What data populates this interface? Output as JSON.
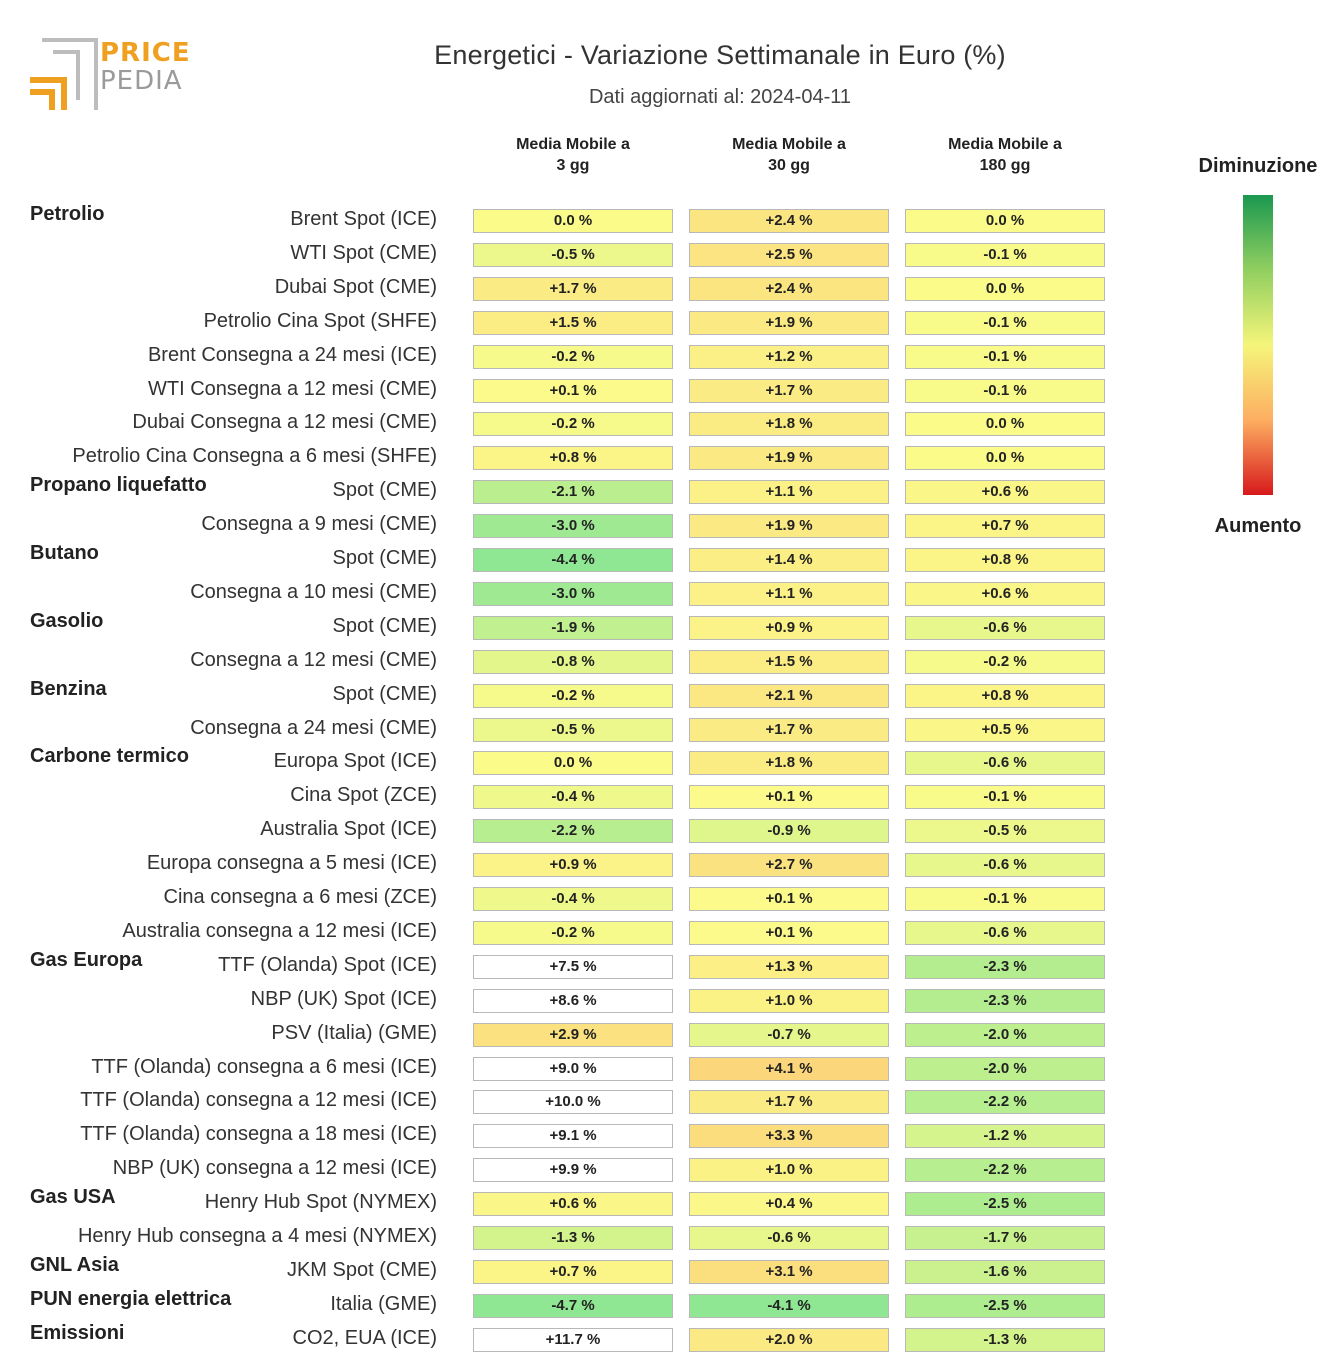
{
  "logo": {
    "line1": "PRICE",
    "line2": "PEDIA"
  },
  "title": "Energetici - Variazione Settimanale in Euro (%)",
  "subtitle": "Dati aggiornati al: 2024-04-11",
  "columns": [
    {
      "line1": "Media Mobile a",
      "line2": "3 gg"
    },
    {
      "line1": "Media Mobile a",
      "line2": "30 gg"
    },
    {
      "line1": "Media Mobile a",
      "line2": "180 gg"
    }
  ],
  "legend": {
    "top": "Diminuzione",
    "bottom": "Aumento"
  },
  "colors": {
    "green": "#1a9850",
    "light_green": "#91cf60",
    "yellow": "#f5f57a",
    "orange": "#fdae61",
    "red": "#d7191c"
  },
  "chart_data": {
    "type": "heatmap",
    "title": "Energetici - Variazione Settimanale in Euro (%)",
    "columns": [
      "Media Mobile a 3 gg",
      "Media Mobile a 30 gg",
      "Media Mobile a 180 gg"
    ],
    "value_format": "percent",
    "groups": [
      {
        "name": "Petrolio",
        "rows": [
          {
            "label": "Brent Spot (ICE)",
            "values": [
              "0.0 %",
              "+2.4 %",
              "0.0 %"
            ],
            "nums": [
              0.0,
              2.4,
              0.0
            ]
          },
          {
            "label": "WTI Spot (CME)",
            "values": [
              "-0.5 %",
              "+2.5 %",
              "-0.1 %"
            ],
            "nums": [
              -0.5,
              2.5,
              -0.1
            ]
          },
          {
            "label": "Dubai Spot (CME)",
            "values": [
              "+1.7 %",
              "+2.4 %",
              "0.0 %"
            ],
            "nums": [
              1.7,
              2.4,
              0.0
            ]
          },
          {
            "label": "Petrolio Cina Spot (SHFE)",
            "values": [
              "+1.5 %",
              "+1.9 %",
              "-0.1 %"
            ],
            "nums": [
              1.5,
              1.9,
              -0.1
            ]
          },
          {
            "label": "Brent Consegna a 24 mesi (ICE)",
            "values": [
              "-0.2 %",
              "+1.2 %",
              "-0.1 %"
            ],
            "nums": [
              -0.2,
              1.2,
              -0.1
            ]
          },
          {
            "label": "WTI Consegna a 12 mesi (CME)",
            "values": [
              "+0.1 %",
              "+1.7 %",
              "-0.1 %"
            ],
            "nums": [
              0.1,
              1.7,
              -0.1
            ]
          },
          {
            "label": "Dubai Consegna a 12 mesi (CME)",
            "values": [
              "-0.2 %",
              "+1.8 %",
              "0.0 %"
            ],
            "nums": [
              -0.2,
              1.8,
              0.0
            ]
          },
          {
            "label": "Petrolio Cina Consegna a 6 mesi (SHFE)",
            "values": [
              "+0.8 %",
              "+1.9 %",
              "0.0 %"
            ],
            "nums": [
              0.8,
              1.9,
              0.0
            ]
          }
        ]
      },
      {
        "name": "Propano liquefatto",
        "rows": [
          {
            "label": "Spot (CME)",
            "values": [
              "-2.1 %",
              "+1.1 %",
              "+0.6 %"
            ],
            "nums": [
              -2.1,
              1.1,
              0.6
            ]
          },
          {
            "label": "Consegna a 9 mesi (CME)",
            "values": [
              "-3.0 %",
              "+1.9 %",
              "+0.7 %"
            ],
            "nums": [
              -3.0,
              1.9,
              0.7
            ]
          }
        ]
      },
      {
        "name": "Butano",
        "rows": [
          {
            "label": "Spot (CME)",
            "values": [
              "-4.4 %",
              "+1.4 %",
              "+0.8 %"
            ],
            "nums": [
              -4.4,
              1.4,
              0.8
            ]
          },
          {
            "label": "Consegna a 10 mesi (CME)",
            "values": [
              "-3.0 %",
              "+1.1 %",
              "+0.6 %"
            ],
            "nums": [
              -3.0,
              1.1,
              0.6
            ]
          }
        ]
      },
      {
        "name": "Gasolio",
        "rows": [
          {
            "label": "Spot (CME)",
            "values": [
              "-1.9 %",
              "+0.9 %",
              "-0.6 %"
            ],
            "nums": [
              -1.9,
              0.9,
              -0.6
            ]
          },
          {
            "label": "Consegna a 12 mesi (CME)",
            "values": [
              "-0.8 %",
              "+1.5 %",
              "-0.2 %"
            ],
            "nums": [
              -0.8,
              1.5,
              -0.2
            ]
          }
        ]
      },
      {
        "name": "Benzina",
        "rows": [
          {
            "label": "Spot (CME)",
            "values": [
              "-0.2 %",
              "+2.1 %",
              "+0.8 %"
            ],
            "nums": [
              -0.2,
              2.1,
              0.8
            ]
          },
          {
            "label": "Consegna a 24 mesi (CME)",
            "values": [
              "-0.5 %",
              "+1.7 %",
              "+0.5 %"
            ],
            "nums": [
              -0.5,
              1.7,
              0.5
            ]
          }
        ]
      },
      {
        "name": "Carbone termico",
        "rows": [
          {
            "label": "Europa Spot (ICE)",
            "values": [
              "0.0 %",
              "+1.8 %",
              "-0.6 %"
            ],
            "nums": [
              0.0,
              1.8,
              -0.6
            ]
          },
          {
            "label": "Cina Spot (ZCE)",
            "values": [
              "-0.4 %",
              "+0.1 %",
              "-0.1 %"
            ],
            "nums": [
              -0.4,
              0.1,
              -0.1
            ]
          },
          {
            "label": "Australia Spot (ICE)",
            "values": [
              "-2.2 %",
              "-0.9 %",
              "-0.5 %"
            ],
            "nums": [
              -2.2,
              -0.9,
              -0.5
            ]
          },
          {
            "label": "Europa consegna a 5 mesi (ICE)",
            "values": [
              "+0.9 %",
              "+2.7 %",
              "-0.6 %"
            ],
            "nums": [
              0.9,
              2.7,
              -0.6
            ]
          },
          {
            "label": "Cina consegna a 6 mesi (ZCE)",
            "values": [
              "-0.4 %",
              "+0.1 %",
              "-0.1 %"
            ],
            "nums": [
              -0.4,
              0.1,
              -0.1
            ]
          },
          {
            "label": "Australia consegna a 12 mesi (ICE)",
            "values": [
              "-0.2 %",
              "+0.1 %",
              "-0.6 %"
            ],
            "nums": [
              -0.2,
              0.1,
              -0.6
            ]
          }
        ]
      },
      {
        "name": "Gas Europa",
        "rows": [
          {
            "label": "TTF (Olanda) Spot (ICE)",
            "values": [
              "+7.5 %",
              "+1.3 %",
              "-2.3 %"
            ],
            "nums": [
              7.5,
              1.3,
              -2.3
            ]
          },
          {
            "label": "NBP (UK) Spot (ICE)",
            "values": [
              "+8.6 %",
              "+1.0 %",
              "-2.3 %"
            ],
            "nums": [
              8.6,
              1.0,
              -2.3
            ]
          },
          {
            "label": "PSV (Italia) (GME)",
            "values": [
              "+2.9 %",
              "-0.7 %",
              "-2.0 %"
            ],
            "nums": [
              2.9,
              -0.7,
              -2.0
            ]
          },
          {
            "label": "TTF (Olanda) consegna a 6 mesi (ICE)",
            "values": [
              "+9.0 %",
              "+4.1 %",
              "-2.0 %"
            ],
            "nums": [
              9.0,
              4.1,
              -2.0
            ]
          },
          {
            "label": "TTF (Olanda) consegna a 12 mesi (ICE)",
            "values": [
              "+10.0 %",
              "+1.7 %",
              "-2.2 %"
            ],
            "nums": [
              10.0,
              1.7,
              -2.2
            ]
          },
          {
            "label": "TTF (Olanda) consegna a 18 mesi (ICE)",
            "values": [
              "+9.1 %",
              "+3.3 %",
              "-1.2 %"
            ],
            "nums": [
              9.1,
              3.3,
              -1.2
            ]
          },
          {
            "label": "NBP (UK) consegna a 12 mesi (ICE)",
            "values": [
              "+9.9 %",
              "+1.0 %",
              "-2.2 %"
            ],
            "nums": [
              9.9,
              1.0,
              -2.2
            ]
          }
        ]
      },
      {
        "name": "Gas USA",
        "rows": [
          {
            "label": "Henry Hub Spot (NYMEX)",
            "values": [
              "+0.6 %",
              "+0.4 %",
              "-2.5 %"
            ],
            "nums": [
              0.6,
              0.4,
              -2.5
            ]
          },
          {
            "label": "Henry Hub consegna a 4 mesi (NYMEX)",
            "values": [
              "-1.3 %",
              "-0.6 %",
              "-1.7 %"
            ],
            "nums": [
              -1.3,
              -0.6,
              -1.7
            ]
          }
        ]
      },
      {
        "name": "GNL Asia",
        "rows": [
          {
            "label": "JKM Spot (CME)",
            "values": [
              "+0.7 %",
              "+3.1 %",
              "-1.6 %"
            ],
            "nums": [
              0.7,
              3.1,
              -1.6
            ]
          }
        ]
      },
      {
        "name": "PUN energia elettrica",
        "rows": [
          {
            "label": "Italia (GME)",
            "values": [
              "-4.7 %",
              "-4.1 %",
              "-2.5 %"
            ],
            "nums": [
              -4.7,
              -4.1,
              -2.5
            ]
          }
        ]
      },
      {
        "name": "Emissioni",
        "rows": [
          {
            "label": "CO2, EUA (ICE)",
            "values": [
              "+11.7 %",
              "+2.0 %",
              "-1.3 %"
            ],
            "nums": [
              11.7,
              2.0,
              -1.3
            ]
          }
        ]
      }
    ]
  }
}
